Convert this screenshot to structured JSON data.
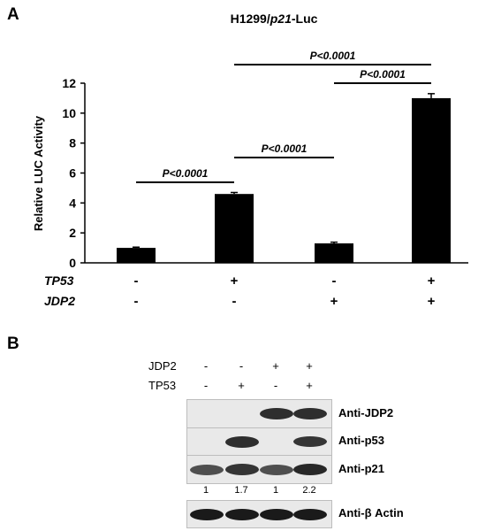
{
  "panels": {
    "a": "A",
    "b": "B"
  },
  "chart_data": {
    "type": "bar",
    "title_prefix": "H1299/",
    "title_italic": "p21",
    "title_suffix": "-Luc",
    "ylabel": "Relative LUC Activity",
    "ylim": [
      0,
      12
    ],
    "yticks": [
      "0",
      "2",
      "4",
      "6",
      "8",
      "10",
      "12"
    ],
    "grid": false,
    "legend": "none",
    "categories": [
      "TP53- JDP2-",
      "TP53+ JDP2-",
      "TP53- JDP2+",
      "TP53+ JDP2+"
    ],
    "values": [
      1.0,
      4.6,
      1.3,
      11.0
    ],
    "errors": [
      0.05,
      0.1,
      0.08,
      0.3
    ],
    "bar_color": "#000000",
    "row_labels": [
      "TP53",
      "JDP2"
    ],
    "condition_rows": [
      [
        "-",
        "+",
        "-",
        "+"
      ],
      [
        "-",
        "-",
        "+",
        "+"
      ]
    ],
    "comparisons": [
      {
        "from": 0,
        "to": 1,
        "label": "P<0.0001"
      },
      {
        "from": 1,
        "to": 2,
        "label": "P<0.0001"
      },
      {
        "from": 2,
        "to": 3,
        "label": "P<0.0001"
      },
      {
        "from": 1,
        "to": 3,
        "label": "P<0.0001"
      }
    ]
  },
  "blot": {
    "conditions": [
      {
        "label": "JDP2",
        "signs": [
          "-",
          "-",
          "+",
          "+"
        ]
      },
      {
        "label": "TP53",
        "signs": [
          "-",
          "+",
          "-",
          "+"
        ]
      }
    ],
    "strips": [
      {
        "label": "Anti-JDP2",
        "intensity": [
          0,
          0,
          0.85,
          0.85
        ]
      },
      {
        "label": "Anti-p53",
        "intensity": [
          0,
          0.85,
          0,
          0.8
        ]
      },
      {
        "label": "Anti-p21",
        "intensity": [
          0.6,
          0.8,
          0.6,
          0.9
        ]
      },
      {
        "label": "Anti-β Actin",
        "intensity": [
          1,
          1,
          1,
          1
        ]
      }
    ],
    "p21_quant": [
      "1",
      "1.7",
      "1",
      "2.2"
    ]
  }
}
